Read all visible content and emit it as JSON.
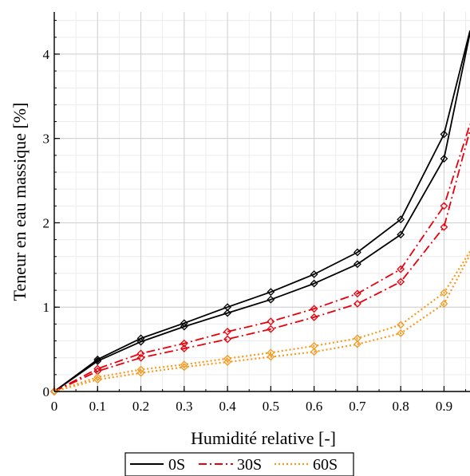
{
  "chart_data": {
    "type": "line",
    "title": "",
    "xlabel": "Humidité relative [-]",
    "ylabel": "Teneur en eau massique [%]",
    "xlim": [
      0,
      0.96
    ],
    "ylim": [
      0,
      4.5
    ],
    "grid": true,
    "legend_position": "bottom",
    "x_ticks": [
      0,
      0.1,
      0.2,
      0.3,
      0.4,
      0.5,
      0.6,
      0.7,
      0.8,
      0.9
    ],
    "x_tick_labels": [
      "0",
      "0.1",
      "0.2",
      "0.3",
      "0.4",
      "0.5",
      "0.6",
      "0.7",
      "0.8",
      "0.9"
    ],
    "y_ticks": [
      0,
      1,
      2,
      3,
      4
    ],
    "y_tick_labels": [
      "0",
      "1",
      "2",
      "3",
      "4"
    ],
    "legend": [
      "0S",
      "30S",
      "60S"
    ],
    "series": [
      {
        "name": "0S",
        "branch": "upper",
        "color": "#000000",
        "dash": "solid",
        "x": [
          0,
          0.1,
          0.2,
          0.3,
          0.4,
          0.5,
          0.6,
          0.7,
          0.8,
          0.9,
          0.96
        ],
        "y": [
          0,
          0.38,
          0.63,
          0.81,
          1.0,
          1.18,
          1.39,
          1.65,
          2.04,
          3.05,
          4.28
        ]
      },
      {
        "name": "0S",
        "branch": "lower",
        "color": "#000000",
        "dash": "solid",
        "x": [
          0,
          0.1,
          0.2,
          0.3,
          0.4,
          0.5,
          0.6,
          0.7,
          0.8,
          0.9,
          0.96
        ],
        "y": [
          0,
          0.36,
          0.59,
          0.77,
          0.93,
          1.09,
          1.28,
          1.51,
          1.86,
          2.76,
          4.25
        ]
      },
      {
        "name": "30S",
        "branch": "upper",
        "color": "#e8000b",
        "dash": "dashdot",
        "x": [
          0,
          0.1,
          0.2,
          0.3,
          0.4,
          0.5,
          0.6,
          0.7,
          0.8,
          0.9,
          0.96
        ],
        "y": [
          0,
          0.27,
          0.45,
          0.57,
          0.71,
          0.83,
          0.98,
          1.16,
          1.45,
          2.2,
          3.17
        ]
      },
      {
        "name": "30S",
        "branch": "lower",
        "color": "#e8000b",
        "dash": "dashdot",
        "x": [
          0,
          0.1,
          0.2,
          0.3,
          0.4,
          0.5,
          0.6,
          0.7,
          0.8,
          0.9,
          0.96
        ],
        "y": [
          0,
          0.24,
          0.4,
          0.51,
          0.62,
          0.74,
          0.88,
          1.04,
          1.3,
          1.95,
          3.1
        ]
      },
      {
        "name": "60S",
        "branch": "upper",
        "color": "#f59a1e",
        "dash": "dotted",
        "x": [
          0,
          0.1,
          0.2,
          0.3,
          0.4,
          0.5,
          0.6,
          0.7,
          0.8,
          0.9,
          0.96
        ],
        "y": [
          0,
          0.17,
          0.26,
          0.32,
          0.39,
          0.46,
          0.54,
          0.63,
          0.79,
          1.17,
          1.66
        ]
      },
      {
        "name": "60S",
        "branch": "lower",
        "color": "#f59a1e",
        "dash": "dotted",
        "x": [
          0,
          0.1,
          0.2,
          0.3,
          0.4,
          0.5,
          0.6,
          0.7,
          0.8,
          0.9,
          0.96
        ],
        "y": [
          0,
          0.14,
          0.22,
          0.29,
          0.35,
          0.41,
          0.47,
          0.56,
          0.69,
          1.04,
          1.62
        ]
      }
    ]
  }
}
